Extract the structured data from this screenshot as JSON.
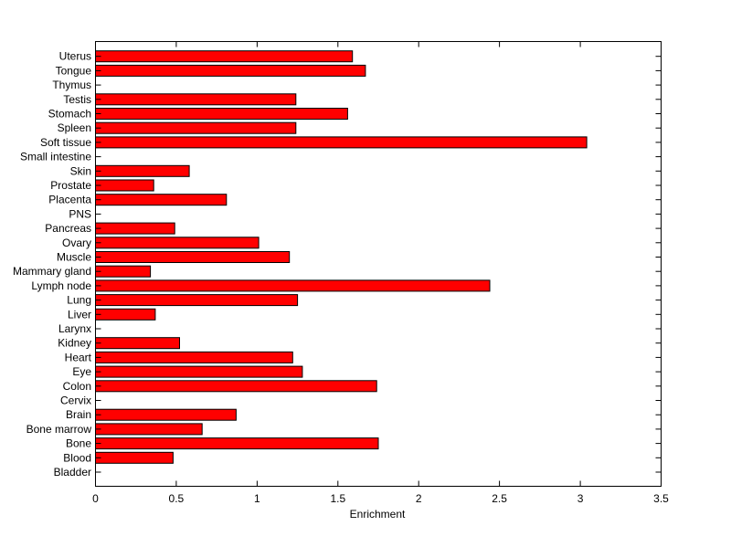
{
  "chart_data": {
    "type": "bar",
    "orientation": "horizontal",
    "title": "",
    "xlabel": "Enrichment",
    "ylabel": "",
    "xlim": [
      0,
      3.5
    ],
    "xticks": [
      "0",
      "0.5",
      "1",
      "1.5",
      "2",
      "2.5",
      "3",
      "3.5"
    ],
    "grid": false,
    "bar_color": "#ff0000",
    "categories": [
      "Bladder",
      "Blood",
      "Bone",
      "Bone marrow",
      "Brain",
      "Cervix",
      "Colon",
      "Eye",
      "Heart",
      "Kidney",
      "Larynx",
      "Liver",
      "Lung",
      "Lymph node",
      "Mammary gland",
      "Muscle",
      "Ovary",
      "Pancreas",
      "PNS",
      "Placenta",
      "Prostate",
      "Skin",
      "Small intestine",
      "Soft tissue",
      "Spleen",
      "Stomach",
      "Testis",
      "Thymus",
      "Tongue",
      "Uterus"
    ],
    "values": [
      0,
      0.48,
      1.75,
      0.66,
      0.87,
      0,
      1.74,
      1.28,
      1.22,
      0.52,
      0,
      0.37,
      1.25,
      2.44,
      0.34,
      1.2,
      1.01,
      0.49,
      0,
      0.81,
      0.36,
      0.58,
      0,
      3.04,
      1.24,
      1.56,
      1.24,
      0,
      1.67,
      1.59
    ]
  }
}
